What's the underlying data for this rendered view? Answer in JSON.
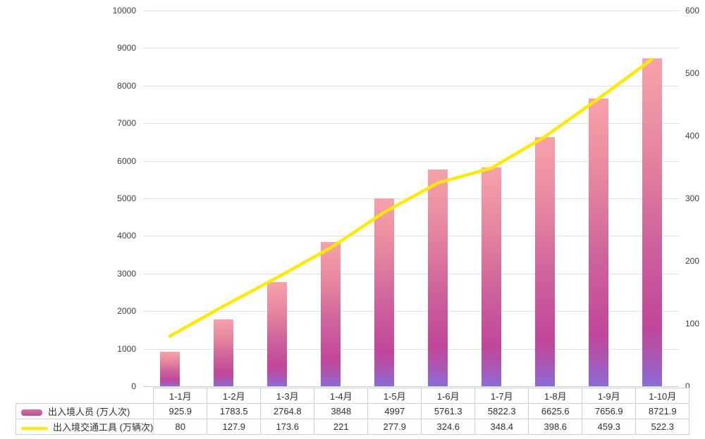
{
  "chart_data": {
    "type": "bar+line combo",
    "categories": [
      "1-1月",
      "1-2月",
      "1-3月",
      "1-4月",
      "1-5月",
      "1-6月",
      "1-7月",
      "1-8月",
      "1-9月",
      "1-10月"
    ],
    "series": [
      {
        "name": "出入境人员 (万人次)",
        "type": "bar",
        "y_axis": "left",
        "values": [
          925.9,
          1783.5,
          2764.8,
          3848,
          4997,
          5761.3,
          5822.3,
          6625.6,
          7656.9,
          8721.9
        ]
      },
      {
        "name": "出入境交通工具 (万辆次)",
        "type": "line",
        "y_axis": "right",
        "values": [
          80,
          127.9,
          173.6,
          221,
          277.9,
          324.6,
          348.4,
          398.6,
          459.3,
          522.3
        ]
      }
    ],
    "left_axis": {
      "min": 0,
      "max": 10000,
      "step": 1000
    },
    "right_axis": {
      "min": 0,
      "max": 600,
      "step": 100
    },
    "grid": "horizontal-only",
    "legend_position": "bottom data table"
  },
  "colors": {
    "bar_gradient_top": "#f8a2a9",
    "bar_gradient_mid": "#c1469a",
    "bar_gradient_bottom": "#8b6bd8",
    "line": "#ffea00",
    "gridline": "#dbe1f0",
    "table_border": "#c6d0e8",
    "text": "#34343c"
  }
}
